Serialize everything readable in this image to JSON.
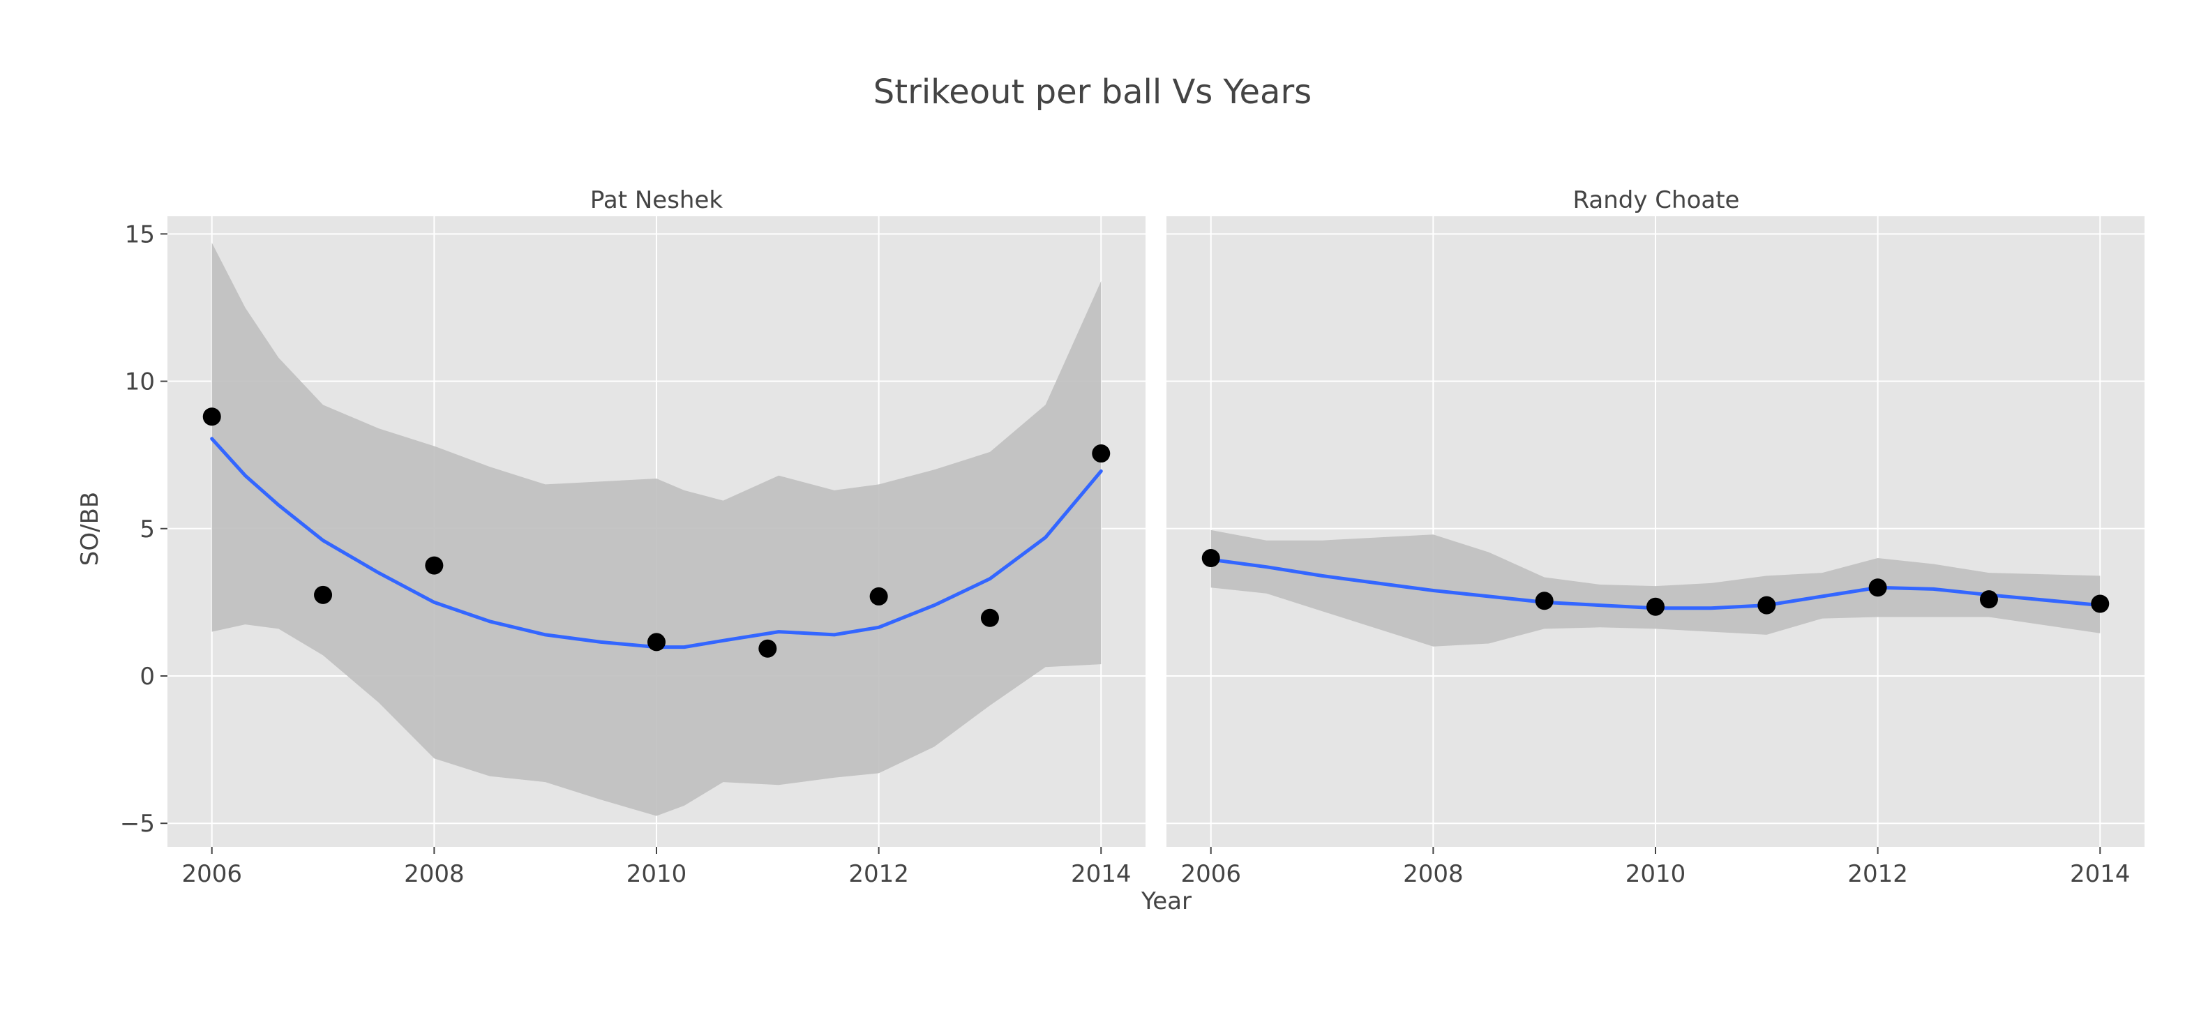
{
  "chart_data": {
    "type": "scatter",
    "title": "Strikeout per ball Vs Years",
    "xlabel": "Year",
    "ylabel": "SO/BB",
    "xlim": [
      2005.6,
      2014.4
    ],
    "ylim": [
      -5.8,
      15.6
    ],
    "x_ticks": [
      2006,
      2008,
      2010,
      2012,
      2014
    ],
    "x_tick_labels": [
      "2006",
      "2008",
      "2010",
      "2012",
      "2014"
    ],
    "y_ticks": [
      -5,
      0,
      5,
      10,
      15
    ],
    "y_tick_labels": [
      "−5",
      "0",
      "5",
      "10",
      "15"
    ],
    "grid": true,
    "colors": {
      "panel_bg": "#e5e5e5",
      "grid": "#ffffff",
      "point": "#000000",
      "line": "#3366ff",
      "ribbon": "#bfbfbf"
    },
    "panels": [
      {
        "name": "Pat Neshek",
        "points": [
          {
            "x": 2006,
            "y": 8.8
          },
          {
            "x": 2007,
            "y": 2.75
          },
          {
            "x": 2008,
            "y": 3.75
          },
          {
            "x": 2010,
            "y": 1.15
          },
          {
            "x": 2011,
            "y": 0.93
          },
          {
            "x": 2012,
            "y": 2.7
          },
          {
            "x": 2013,
            "y": 1.97
          },
          {
            "x": 2014,
            "y": 7.55
          }
        ],
        "smooth": [
          {
            "x": 2006.0,
            "y": 8.05,
            "lo": 1.5,
            "hi": 14.7
          },
          {
            "x": 2006.3,
            "y": 6.8,
            "lo": 1.75,
            "hi": 12.5
          },
          {
            "x": 2006.6,
            "y": 5.8,
            "lo": 1.6,
            "hi": 10.8
          },
          {
            "x": 2007.0,
            "y": 4.6,
            "lo": 0.7,
            "hi": 9.2
          },
          {
            "x": 2007.5,
            "y": 3.5,
            "lo": -0.9,
            "hi": 8.4
          },
          {
            "x": 2008.0,
            "y": 2.5,
            "lo": -2.8,
            "hi": 7.8
          },
          {
            "x": 2008.5,
            "y": 1.85,
            "lo": -3.4,
            "hi": 7.1
          },
          {
            "x": 2009.0,
            "y": 1.4,
            "lo": -3.6,
            "hi": 6.5
          },
          {
            "x": 2009.5,
            "y": 1.15,
            "lo": -4.2,
            "hi": 6.6
          },
          {
            "x": 2010.0,
            "y": 0.98,
            "lo": -4.75,
            "hi": 6.7
          },
          {
            "x": 2010.25,
            "y": 0.98,
            "lo": -4.4,
            "hi": 6.3
          },
          {
            "x": 2010.6,
            "y": 1.2,
            "lo": -3.6,
            "hi": 5.95
          },
          {
            "x": 2011.1,
            "y": 1.5,
            "lo": -3.7,
            "hi": 6.8
          },
          {
            "x": 2011.6,
            "y": 1.4,
            "lo": -3.45,
            "hi": 6.3
          },
          {
            "x": 2012.0,
            "y": 1.65,
            "lo": -3.3,
            "hi": 6.5
          },
          {
            "x": 2012.5,
            "y": 2.4,
            "lo": -2.4,
            "hi": 7.0
          },
          {
            "x": 2013.0,
            "y": 3.3,
            "lo": -1.0,
            "hi": 7.6
          },
          {
            "x": 2013.5,
            "y": 4.7,
            "lo": 0.3,
            "hi": 9.2
          },
          {
            "x": 2014.0,
            "y": 6.95,
            "lo": 0.4,
            "hi": 13.4
          }
        ]
      },
      {
        "name": "Randy Choate",
        "points": [
          {
            "x": 2006,
            "y": 4.0
          },
          {
            "x": 2009,
            "y": 2.55
          },
          {
            "x": 2010,
            "y": 2.35
          },
          {
            "x": 2011,
            "y": 2.4
          },
          {
            "x": 2012,
            "y": 3.0
          },
          {
            "x": 2013,
            "y": 2.6
          },
          {
            "x": 2014,
            "y": 2.45
          }
        ],
        "smooth": [
          {
            "x": 2006.0,
            "y": 3.95,
            "lo": 3.0,
            "hi": 4.95
          },
          {
            "x": 2006.5,
            "y": 3.7,
            "lo": 2.8,
            "hi": 4.6
          },
          {
            "x": 2007.0,
            "y": 3.4,
            "lo": 2.2,
            "hi": 4.6
          },
          {
            "x": 2008.0,
            "y": 2.9,
            "lo": 1.0,
            "hi": 4.8
          },
          {
            "x": 2008.5,
            "y": 2.7,
            "lo": 1.1,
            "hi": 4.2
          },
          {
            "x": 2009.0,
            "y": 2.5,
            "lo": 1.6,
            "hi": 3.35
          },
          {
            "x": 2009.5,
            "y": 2.4,
            "lo": 1.65,
            "hi": 3.1
          },
          {
            "x": 2010.0,
            "y": 2.3,
            "lo": 1.6,
            "hi": 3.05
          },
          {
            "x": 2010.5,
            "y": 2.3,
            "lo": 1.5,
            "hi": 3.15
          },
          {
            "x": 2011.0,
            "y": 2.4,
            "lo": 1.4,
            "hi": 3.4
          },
          {
            "x": 2011.5,
            "y": 2.7,
            "lo": 1.95,
            "hi": 3.5
          },
          {
            "x": 2012.0,
            "y": 3.0,
            "lo": 2.0,
            "hi": 4.0
          },
          {
            "x": 2012.5,
            "y": 2.95,
            "lo": 2.0,
            "hi": 3.8
          },
          {
            "x": 2013.0,
            "y": 2.75,
            "lo": 2.0,
            "hi": 3.5
          },
          {
            "x": 2014.0,
            "y": 2.4,
            "lo": 1.45,
            "hi": 3.4
          }
        ]
      }
    ]
  }
}
